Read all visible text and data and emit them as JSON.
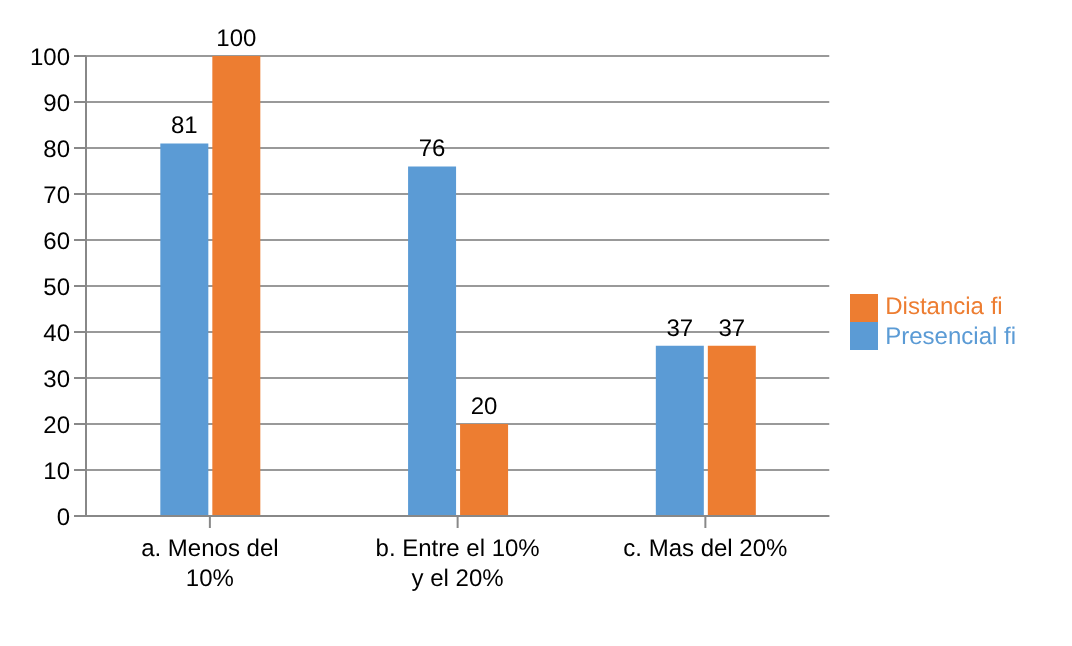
{
  "chart_data": {
    "type": "bar",
    "categories": [
      "a. Menos del 10%",
      "b. Entre el 10% y el 20%",
      "c. Mas del 20%"
    ],
    "series": [
      {
        "name": "Presencial fi",
        "color": "#5b9bd5",
        "values": [
          81,
          76,
          37
        ]
      },
      {
        "name": "Distancia fi",
        "color": "#ed7d31",
        "values": [
          100,
          20,
          37
        ]
      }
    ],
    "ylim": [
      0,
      100
    ],
    "yticks": [
      0,
      10,
      20,
      30,
      40,
      50,
      60,
      70,
      80,
      90,
      100
    ],
    "grid": "y",
    "legend": "right",
    "data_labels": true
  }
}
